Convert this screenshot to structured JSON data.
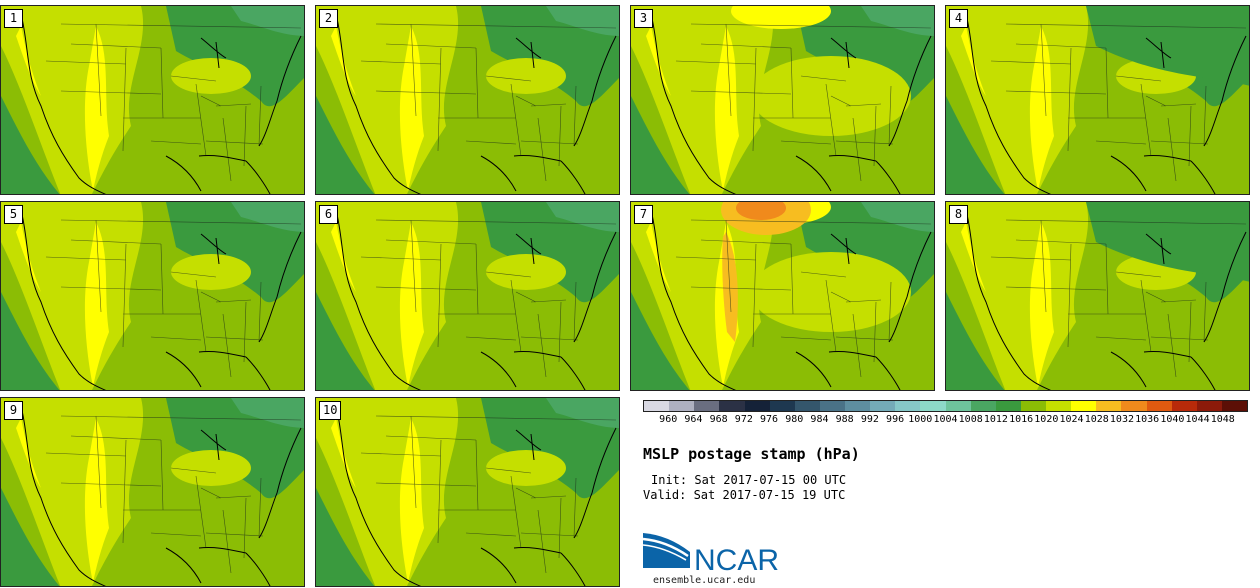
{
  "panels": [
    {
      "number": "1",
      "variant": "base"
    },
    {
      "number": "2",
      "variant": "base"
    },
    {
      "number": "3",
      "variant": "high-north"
    },
    {
      "number": "4",
      "variant": "low"
    },
    {
      "number": "5",
      "variant": "base"
    },
    {
      "number": "6",
      "variant": "base"
    },
    {
      "number": "7",
      "variant": "high-strong"
    },
    {
      "number": "8",
      "variant": "low"
    },
    {
      "number": "9",
      "variant": "base"
    },
    {
      "number": "10",
      "variant": "base"
    }
  ],
  "colorbar": {
    "levels": [
      "960",
      "964",
      "968",
      "972",
      "976",
      "980",
      "984",
      "988",
      "992",
      "996",
      "1000",
      "1004",
      "1008",
      "1012",
      "1016",
      "1020",
      "1024",
      "1028",
      "1032",
      "1036",
      "1040",
      "1044",
      "1048"
    ],
    "colors": [
      "#d9d9e3",
      "#aeb0c0",
      "#6a6e80",
      "#2b3145",
      "#152238",
      "#1e3850",
      "#34566c",
      "#4a7287",
      "#5e8ea0",
      "#74abb8",
      "#86c8c8",
      "#8dd9c8",
      "#6ec49c",
      "#4aa662",
      "#3a9a3e",
      "#8bbd05",
      "#c5df00",
      "#ffff00",
      "#f7bd20",
      "#f08a1c",
      "#df5a10",
      "#b82a0a",
      "#8c1a0a",
      "#5c0f06"
    ]
  },
  "title": "MSLP postage stamp (hPa)",
  "init": "Init: Sat 2017-07-15 00 UTC",
  "valid": "Valid: Sat 2017-07-15 19 UTC",
  "logo": {
    "wordmark": "NCAR",
    "url": "ensemble.ucar.edu"
  },
  "colors": {
    "high": "#ffff00",
    "midhigh": "#c5df00",
    "base": "#8bbd05",
    "low": "#3a9a3e",
    "lowest": "#4aa662",
    "orange": "#f7bd20",
    "deep_orange": "#f08a1c"
  }
}
